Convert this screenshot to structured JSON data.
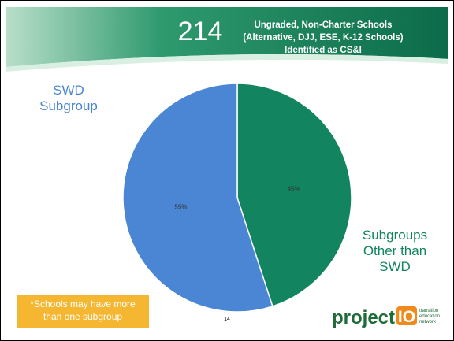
{
  "header": {
    "count": "214",
    "title_lines": [
      "Ungraded, Non-Charter Schools",
      "(Alternative, DJJ, ESE, K-12 Schools)",
      "Identified as CS&I"
    ]
  },
  "chart_data": {
    "type": "pie",
    "categories": [
      "Subgroups Other than SWD",
      "SWD Subgroup"
    ],
    "values": [
      45,
      55
    ],
    "value_labels": [
      "45%",
      "55%"
    ],
    "colors": [
      "#12845f",
      "#4a86d4"
    ]
  },
  "footnote": "*Schools may have more than one subgroup",
  "page_number": "14",
  "logo": {
    "word": "project",
    "mark": "IO",
    "tagline": [
      "transition",
      "education",
      "network"
    ]
  }
}
